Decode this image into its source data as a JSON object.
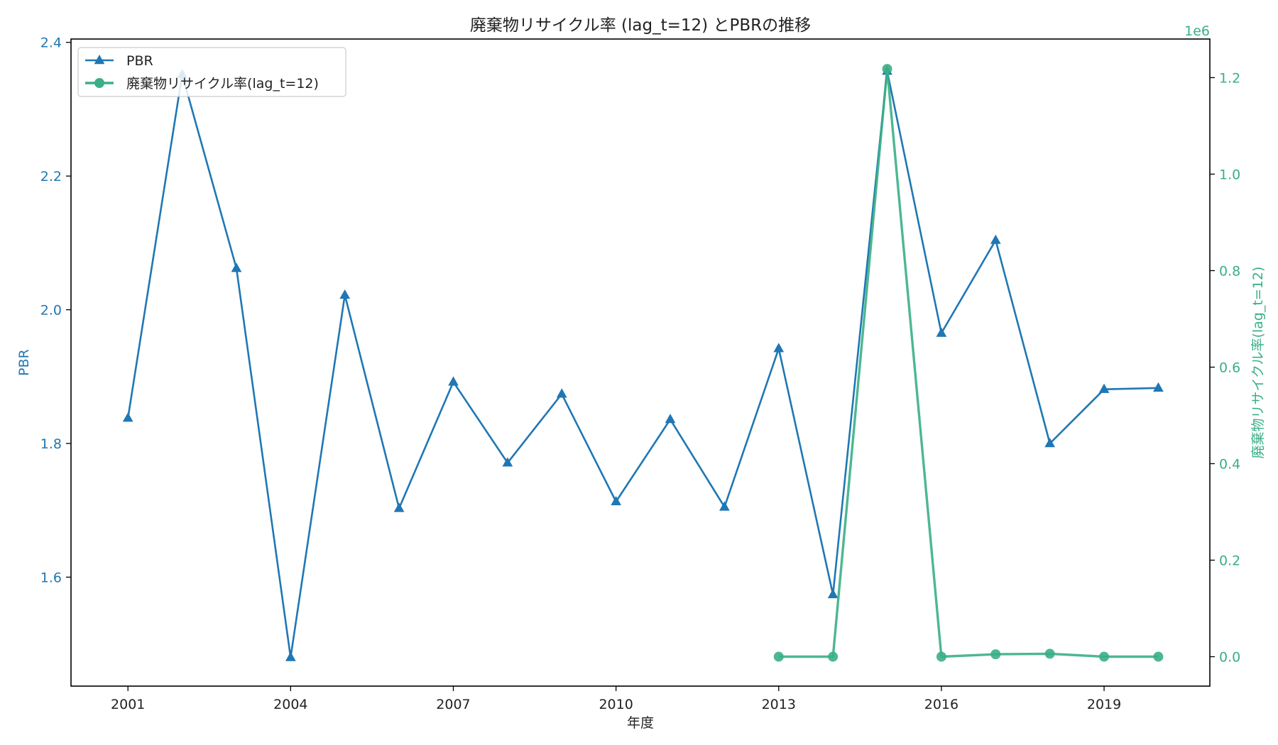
{
  "chart_data": {
    "type": "line",
    "title": "廃棄物リサイクル率 (lag_t=12) とPBRの推移",
    "xlabel": "年度",
    "ylabel_left": "PBR",
    "ylabel_right": "廃棄物リサイクル率(lag_t=12)",
    "right_offset_label": "1e6",
    "xlim": [
      1999.95,
      2020.95
    ],
    "ylim_left": [
      1.437,
      2.405
    ],
    "ylim_right": [
      -61000,
      1280000
    ],
    "x_ticks": [
      2001,
      2004,
      2007,
      2010,
      2013,
      2016,
      2019
    ],
    "y_left_ticks": [
      1.6,
      1.8,
      2.0,
      2.2,
      2.4
    ],
    "y_left_tick_labels": [
      "1.6",
      "1.8",
      "2.0",
      "2.2",
      "2.4"
    ],
    "y_right_ticks": [
      0,
      200000,
      400000,
      600000,
      800000,
      1000000,
      1200000
    ],
    "y_right_tick_labels": [
      "0.0",
      "0.2",
      "0.4",
      "0.6",
      "0.8",
      "1.0",
      "1.2"
    ],
    "legend_position": "top-left",
    "grid": false,
    "series": [
      {
        "name": "PBR",
        "axis": "left",
        "marker": "triangle",
        "color": "#1f77b4",
        "x": [
          2001,
          2002,
          2003,
          2004,
          2005,
          2006,
          2007,
          2008,
          2009,
          2010,
          2011,
          2012,
          2013,
          2014,
          2015,
          2016,
          2017,
          2018,
          2019,
          2020
        ],
        "values": [
          1.838,
          2.352,
          2.062,
          1.48,
          2.022,
          1.703,
          1.892,
          1.771,
          1.874,
          1.713,
          1.836,
          1.705,
          1.942,
          1.574,
          2.357,
          1.965,
          2.104,
          1.8,
          1.881,
          1.883
        ]
      },
      {
        "name": "廃棄物リサイクル率(lag_t=12)",
        "axis": "right",
        "marker": "circle",
        "color": "#3aaf85",
        "x": [
          2013,
          2014,
          2015,
          2016,
          2017,
          2018,
          2019,
          2020
        ],
        "values": [
          0,
          0,
          1218000,
          0,
          5000,
          6000,
          0,
          0
        ]
      }
    ]
  }
}
